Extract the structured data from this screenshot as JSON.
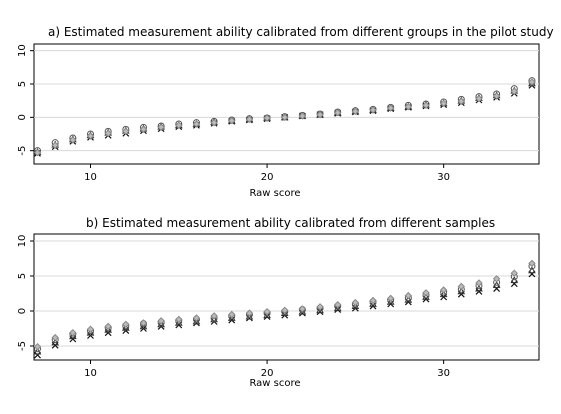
{
  "chart_data": [
    {
      "type": "scatter",
      "title": "a) Estimated measurement ability calibrated from different groups in the pilot study",
      "xlabel": "Raw score",
      "ylabel": "",
      "xlim": [
        6.8,
        35.4
      ],
      "ylim": [
        -7,
        11
      ],
      "xticks": [
        10,
        20,
        30
      ],
      "yticks": [
        -5,
        0,
        5,
        10
      ],
      "ytick_labels": [
        "-5",
        "0",
        "5",
        "10"
      ],
      "grid": "horizontal",
      "x": [
        7,
        8,
        9,
        10,
        11,
        12,
        13,
        14,
        15,
        16,
        17,
        18,
        19,
        20,
        21,
        22,
        23,
        24,
        25,
        26,
        27,
        28,
        29,
        30,
        31,
        32,
        33,
        34,
        35
      ],
      "series": [
        {
          "values": [
            -5.4,
            -4.4,
            -3.6,
            -3.0,
            -2.7,
            -2.4,
            -2.0,
            -1.7,
            -1.4,
            -1.2,
            -0.9,
            -0.6,
            -0.4,
            -0.2,
            0.0,
            0.2,
            0.4,
            0.6,
            0.8,
            1.0,
            1.3,
            1.5,
            1.7,
            1.9,
            2.2,
            2.6,
            3.0,
            3.6,
            4.8
          ]
        },
        {
          "values": [
            -5.2,
            -4.1,
            -3.3,
            -2.7,
            -2.3,
            -2.0,
            -1.7,
            -1.4,
            -1.2,
            -1.0,
            -0.7,
            -0.5,
            -0.3,
            -0.1,
            0.0,
            0.2,
            0.4,
            0.7,
            0.9,
            1.1,
            1.4,
            1.6,
            1.9,
            2.1,
            2.5,
            2.9,
            3.3,
            4.0,
            5.1
          ]
        },
        {
          "values": [
            -5.0,
            -3.8,
            -3.1,
            -2.5,
            -2.1,
            -1.8,
            -1.5,
            -1.3,
            -1.0,
            -0.8,
            -0.6,
            -0.4,
            -0.2,
            -0.1,
            0.1,
            0.3,
            0.5,
            0.8,
            1.0,
            1.2,
            1.5,
            1.8,
            2.0,
            2.3,
            2.7,
            3.1,
            3.5,
            4.3,
            5.5
          ]
        },
        {
          "values": [
            -5.3,
            -4.2,
            -3.4,
            -2.8,
            -2.4,
            -2.1,
            -1.8,
            -1.5,
            -1.2,
            -1.0,
            -0.8,
            -0.5,
            -0.3,
            -0.1,
            0.0,
            0.2,
            0.4,
            0.7,
            0.9,
            1.1,
            1.4,
            1.6,
            1.8,
            2.1,
            2.4,
            2.8,
            3.2,
            3.9,
            5.3
          ]
        }
      ]
    },
    {
      "type": "scatter",
      "title": "b) Estimated measurement ability calibrated from different samples",
      "xlabel": "Raw score",
      "ylabel": "",
      "xlim": [
        6.8,
        35.4
      ],
      "ylim": [
        -7,
        11
      ],
      "xticks": [
        10,
        20,
        30
      ],
      "yticks": [
        -5,
        0,
        5,
        10
      ],
      "ytick_labels": [
        "-5",
        "0",
        "5",
        "10"
      ],
      "grid": "horizontal",
      "x": [
        7,
        8,
        9,
        10,
        11,
        12,
        13,
        14,
        15,
        16,
        17,
        18,
        19,
        20,
        21,
        22,
        23,
        24,
        25,
        26,
        27,
        28,
        29,
        30,
        31,
        32,
        33,
        34,
        35
      ],
      "series": [
        {
          "values": [
            -6.3,
            -4.9,
            -4.0,
            -3.5,
            -3.1,
            -2.8,
            -2.5,
            -2.2,
            -2.0,
            -1.7,
            -1.5,
            -1.3,
            -1.0,
            -0.8,
            -0.6,
            -0.3,
            -0.1,
            0.2,
            0.4,
            0.7,
            1.0,
            1.3,
            1.7,
            2.0,
            2.4,
            2.8,
            3.2,
            3.9,
            5.3
          ]
        },
        {
          "values": [
            -5.8,
            -4.5,
            -3.6,
            -3.1,
            -2.7,
            -2.4,
            -2.2,
            -1.9,
            -1.7,
            -1.5,
            -1.2,
            -1.0,
            -0.8,
            -0.6,
            -0.3,
            -0.1,
            0.1,
            0.4,
            0.7,
            1.0,
            1.3,
            1.6,
            2.0,
            2.4,
            2.8,
            3.2,
            3.7,
            4.4,
            5.8
          ]
        },
        {
          "values": [
            -5.4,
            -4.1,
            -3.3,
            -2.8,
            -2.4,
            -2.1,
            -1.8,
            -1.6,
            -1.4,
            -1.2,
            -1.0,
            -0.7,
            -0.5,
            -0.3,
            -0.1,
            0.2,
            0.4,
            0.7,
            1.0,
            1.3,
            1.6,
            1.9,
            2.3,
            2.7,
            3.1,
            3.6,
            4.1,
            4.9,
            6.4
          ]
        },
        {
          "values": [
            -5.1,
            -3.8,
            -3.1,
            -2.6,
            -2.2,
            -1.9,
            -1.7,
            -1.4,
            -1.2,
            -1.0,
            -0.7,
            -0.5,
            -0.3,
            -0.1,
            0.1,
            0.3,
            0.6,
            0.9,
            1.2,
            1.5,
            1.8,
            2.2,
            2.6,
            3.0,
            3.5,
            4.0,
            4.6,
            5.4,
            6.8
          ]
        }
      ]
    }
  ]
}
